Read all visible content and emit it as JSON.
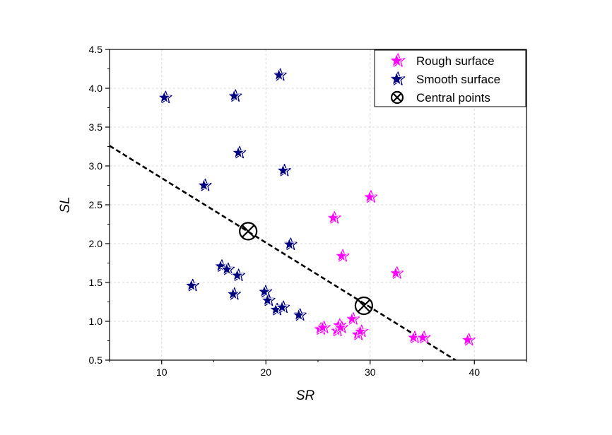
{
  "chart_data": {
    "type": "scatter",
    "xlabel": "SR",
    "ylabel": "SL",
    "xlim": [
      5,
      45
    ],
    "ylim": [
      0.5,
      4.5
    ],
    "xticks": [
      "10",
      "20",
      "30",
      "40"
    ],
    "yticks": [
      "0.5",
      "1.0",
      "1.5",
      "2.0",
      "2.5",
      "3.0",
      "3.5",
      "4.0",
      "4.5"
    ],
    "grid": true,
    "legend_position": "top-right",
    "series": [
      {
        "name": "Rough surface",
        "marker": "star",
        "color": "#ff00ff",
        "points": [
          [
            25.2,
            0.9
          ],
          [
            25.5,
            0.92
          ],
          [
            26.5,
            2.33
          ],
          [
            26.8,
            0.88
          ],
          [
            27.0,
            0.95
          ],
          [
            27.2,
            0.92
          ],
          [
            27.3,
            1.84
          ],
          [
            28.3,
            1.03
          ],
          [
            28.8,
            0.83
          ],
          [
            29.1,
            0.87
          ],
          [
            30.0,
            2.6
          ],
          [
            32.5,
            1.62
          ],
          [
            34.2,
            0.79
          ],
          [
            35.1,
            0.79
          ],
          [
            39.4,
            0.76
          ]
        ]
      },
      {
        "name": "Smooth surface",
        "marker": "star",
        "color": "#000080",
        "points": [
          [
            10.3,
            3.88
          ],
          [
            12.9,
            1.46
          ],
          [
            14.1,
            2.75
          ],
          [
            15.7,
            1.71
          ],
          [
            16.3,
            1.67
          ],
          [
            16.9,
            1.35
          ],
          [
            17.0,
            3.9
          ],
          [
            17.3,
            1.59
          ],
          [
            17.4,
            3.17
          ],
          [
            19.9,
            1.38
          ],
          [
            20.2,
            1.27
          ],
          [
            21.0,
            1.15
          ],
          [
            21.3,
            4.17
          ],
          [
            21.6,
            1.18
          ],
          [
            21.7,
            2.94
          ],
          [
            22.3,
            1.99
          ],
          [
            23.2,
            1.08
          ]
        ]
      },
      {
        "name": "Central points",
        "marker": "circle-x",
        "color": "#000000",
        "points": [
          [
            18.3,
            2.16
          ],
          [
            29.4,
            1.2
          ]
        ]
      }
    ],
    "fit_line": {
      "style": "dashed",
      "color": "#000000",
      "points": [
        [
          5.0,
          3.26
        ],
        [
          38.2,
          0.5
        ]
      ]
    }
  }
}
